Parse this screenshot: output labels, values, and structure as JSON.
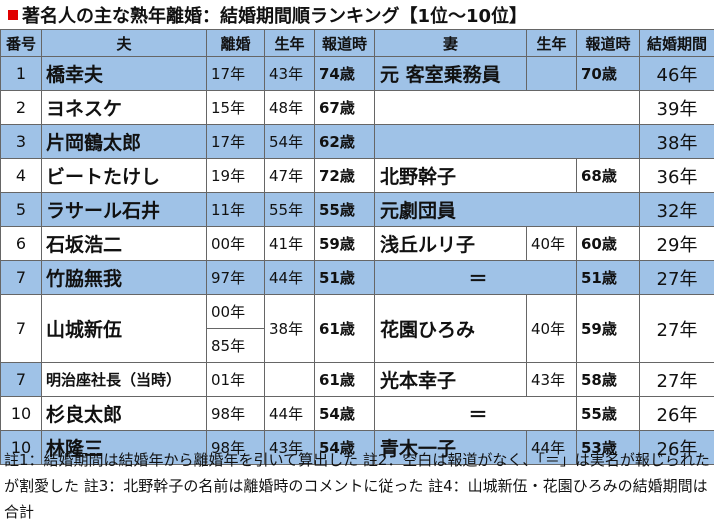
{
  "title": "著名人の主な熟年離婚：結婚期間順ランキング【1位～10位】",
  "headers": {
    "rank": "番号",
    "husband": "夫",
    "divorce": "離婚",
    "born_h": "生年",
    "reported_h": "報道時",
    "wife": "妻",
    "born_w": "生年",
    "reported_w": "報道時",
    "period": "結婚期間"
  },
  "rows": [
    {
      "rank": "1",
      "husband": "橋幸夫",
      "divorce": "17年",
      "born_h": "43年",
      "age_h": "74歳",
      "wife": "元 客室乗務員",
      "born_w": "",
      "age_w": "70歳",
      "period": "46年"
    },
    {
      "rank": "2",
      "husband": "ヨネスケ",
      "divorce": "15年",
      "born_h": "48年",
      "age_h": "67歳",
      "wife": "",
      "born_w": "",
      "age_w": "",
      "period": "39年"
    },
    {
      "rank": "3",
      "husband": "片岡鶴太郎",
      "divorce": "17年",
      "born_h": "54年",
      "age_h": "62歳",
      "wife": "",
      "born_w": "",
      "age_w": "",
      "period": "38年"
    },
    {
      "rank": "4",
      "husband": "ビートたけし",
      "divorce": "19年",
      "born_h": "47年",
      "age_h": "72歳",
      "wife": "北野幹子",
      "born_w": "",
      "age_w": "68歳",
      "period": "36年"
    },
    {
      "rank": "5",
      "husband": "ラサール石井",
      "divorce": "11年",
      "born_h": "55年",
      "age_h": "55歳",
      "wife": "元劇団員",
      "born_w": "",
      "age_w": "",
      "period": "32年"
    },
    {
      "rank": "6",
      "husband": "石坂浩二",
      "divorce": "00年",
      "born_h": "41年",
      "age_h": "59歳",
      "wife": "浅丘ルリ子",
      "born_w": "40年",
      "age_w": "60歳",
      "period": "29年"
    },
    {
      "rank": "7",
      "husband": "竹脇無我",
      "divorce": "97年",
      "born_h": "44年",
      "age_h": "51歳",
      "wife": "＝",
      "born_w": "",
      "age_w": "51歳",
      "period": "27年"
    },
    {
      "rank": "7",
      "husband": "山城新伍",
      "divorce_a": "00年",
      "divorce_b": "85年",
      "born_h": "38年",
      "age_h": "61歳",
      "wife": "花園ひろみ",
      "born_w": "40年",
      "age_w": "59歳",
      "period": "27年"
    },
    {
      "rank": "7",
      "husband": "明治座社長（当時）",
      "divorce": "01年",
      "born_h": "",
      "age_h": "61歳",
      "wife": "光本幸子",
      "born_w": "43年",
      "age_w": "58歳",
      "period": "27年"
    },
    {
      "rank": "10",
      "husband": "杉良太郎",
      "divorce": "98年",
      "born_h": "44年",
      "age_h": "54歳",
      "wife": "＝",
      "born_w": "",
      "age_w": "55歳",
      "period": "26年"
    },
    {
      "rank": "10",
      "husband": "林隆三",
      "divorce": "98年",
      "born_h": "43年",
      "age_h": "54歳",
      "wife": "青木一子",
      "born_w": "44年",
      "age_w": "53歳",
      "period": "26年"
    }
  ],
  "notes": "註1：結婚期間は結婚年から離婚年を引いて算出した 註2：空白は報道がなく、「＝」は実名が報じられたが割愛した 註3：北野幹子の名前は離婚時のコメントに従った 註4：山城新伍・花園ひろみの結婚期間は合計",
  "colors": {
    "header_bg": "#9fc2e7",
    "row_blue": "#9fc2e7",
    "row_white": "#ffffff",
    "title_marker": "#e00000"
  }
}
